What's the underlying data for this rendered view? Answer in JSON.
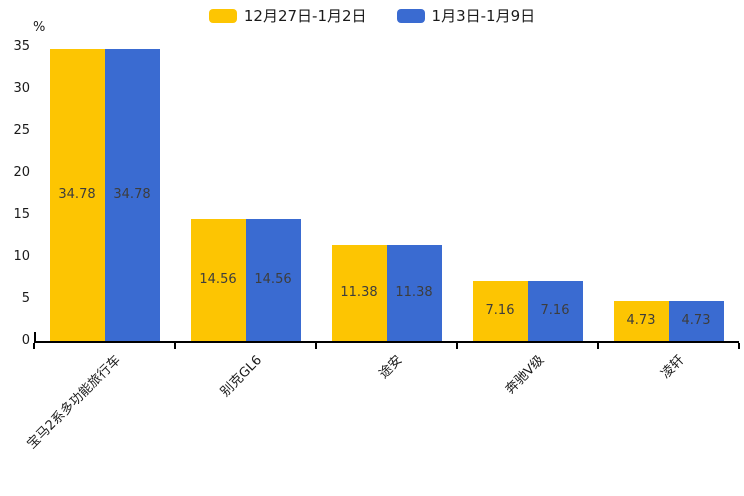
{
  "chart_data": {
    "type": "bar",
    "title": "",
    "unit_label": "%",
    "categories": [
      "宝马2系多功能旅行车",
      "别克GL6",
      "途安",
      "奔驰V级",
      "凌轩"
    ],
    "series": [
      {
        "name": "12月27日-1月2日",
        "color": "#fdc502",
        "values": [
          34.78,
          14.56,
          11.38,
          7.16,
          4.73
        ]
      },
      {
        "name": "1月3日-1月9日",
        "color": "#3a6bd1",
        "values": [
          34.78,
          14.56,
          11.38,
          7.16,
          4.73
        ]
      }
    ],
    "value_labels": [
      "34.78",
      "14.56",
      "11.38",
      "7.16",
      "4.73"
    ],
    "y_ticks": [
      0,
      5,
      10,
      15,
      20,
      25,
      30,
      35
    ],
    "ylim": [
      0,
      35
    ],
    "xlabel": "",
    "ylabel": "%",
    "grid": false,
    "legend_position": "top-center",
    "x_label_rotation": 45,
    "axis_color": "#000000",
    "text_color": "#1a1a1a",
    "bar_value_text_color": "#3d3d3d"
  }
}
